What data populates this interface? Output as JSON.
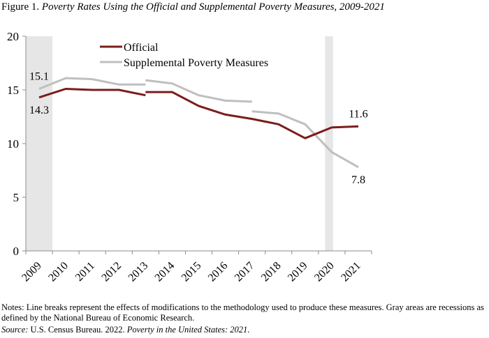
{
  "figure": {
    "label": "Figure 1.",
    "title": "Poverty Rates Using the Official and Supplemental Poverty Measures, 2009-2021",
    "notes": "Notes: Line breaks represent the effects of modifications to the methodology used to produce these measures.  Gray areas are recessions as defined by the National Bureau of Economic Research.",
    "source_label": "Source:",
    "source_pre": "U.S. Census Bureau. 2022.",
    "source_title": "Poverty in the United States: 2021",
    "source_post": "."
  },
  "colors": {
    "official": "#7b1c1c",
    "supplemental": "#bfbfbf",
    "recession": "#e6e6e6",
    "axis": "#8c8c8c"
  },
  "chart_data": {
    "type": "line",
    "x": [
      2009,
      2010,
      2011,
      2012,
      2013,
      2014,
      2015,
      2016,
      2017,
      2018,
      2019,
      2020,
      2021
    ],
    "ylim": [
      0,
      20
    ],
    "yticks": [
      0,
      5,
      10,
      15,
      20
    ],
    "grid": false,
    "legend_position": "top-center",
    "recessions": [
      [
        2009,
        2009.5
      ],
      [
        2019.75,
        2020.05
      ]
    ],
    "series": [
      {
        "name": "Official",
        "color": "#7b1c1c",
        "segments": [
          [
            [
              2009,
              14.3
            ],
            [
              2010,
              15.1
            ],
            [
              2011,
              15.0
            ],
            [
              2012,
              15.0
            ],
            [
              2013,
              14.5
            ]
          ],
          [
            [
              2013,
              14.8
            ],
            [
              2014,
              14.8
            ],
            [
              2015,
              13.5
            ],
            [
              2016,
              12.7
            ],
            [
              2017,
              12.3
            ],
            [
              2018,
              11.8
            ],
            [
              2019,
              10.5
            ],
            [
              2020,
              11.5
            ],
            [
              2021,
              11.6
            ]
          ]
        ]
      },
      {
        "name": "Supplemental Poverty Measures",
        "color": "#bfbfbf",
        "segments": [
          [
            [
              2009,
              15.1
            ],
            [
              2010,
              16.1
            ],
            [
              2011,
              16.0
            ],
            [
              2012,
              15.5
            ],
            [
              2013,
              15.5
            ]
          ],
          [
            [
              2013,
              15.9
            ],
            [
              2014,
              15.6
            ],
            [
              2015,
              14.5
            ],
            [
              2016,
              14.0
            ],
            [
              2017,
              13.9
            ]
          ],
          [
            [
              2017,
              13.0
            ],
            [
              2018,
              12.8
            ],
            [
              2019,
              11.8
            ],
            [
              2020,
              9.2
            ],
            [
              2021,
              7.8
            ]
          ]
        ]
      }
    ],
    "annotations": [
      {
        "text": "15.1",
        "x": 2009,
        "y": 15.1,
        "anchor": "above"
      },
      {
        "text": "14.3",
        "x": 2009,
        "y": 14.3,
        "anchor": "below"
      },
      {
        "text": "11.6",
        "x": 2021,
        "y": 11.6,
        "anchor": "above"
      },
      {
        "text": "7.8",
        "x": 2021,
        "y": 7.8,
        "anchor": "below"
      }
    ]
  }
}
